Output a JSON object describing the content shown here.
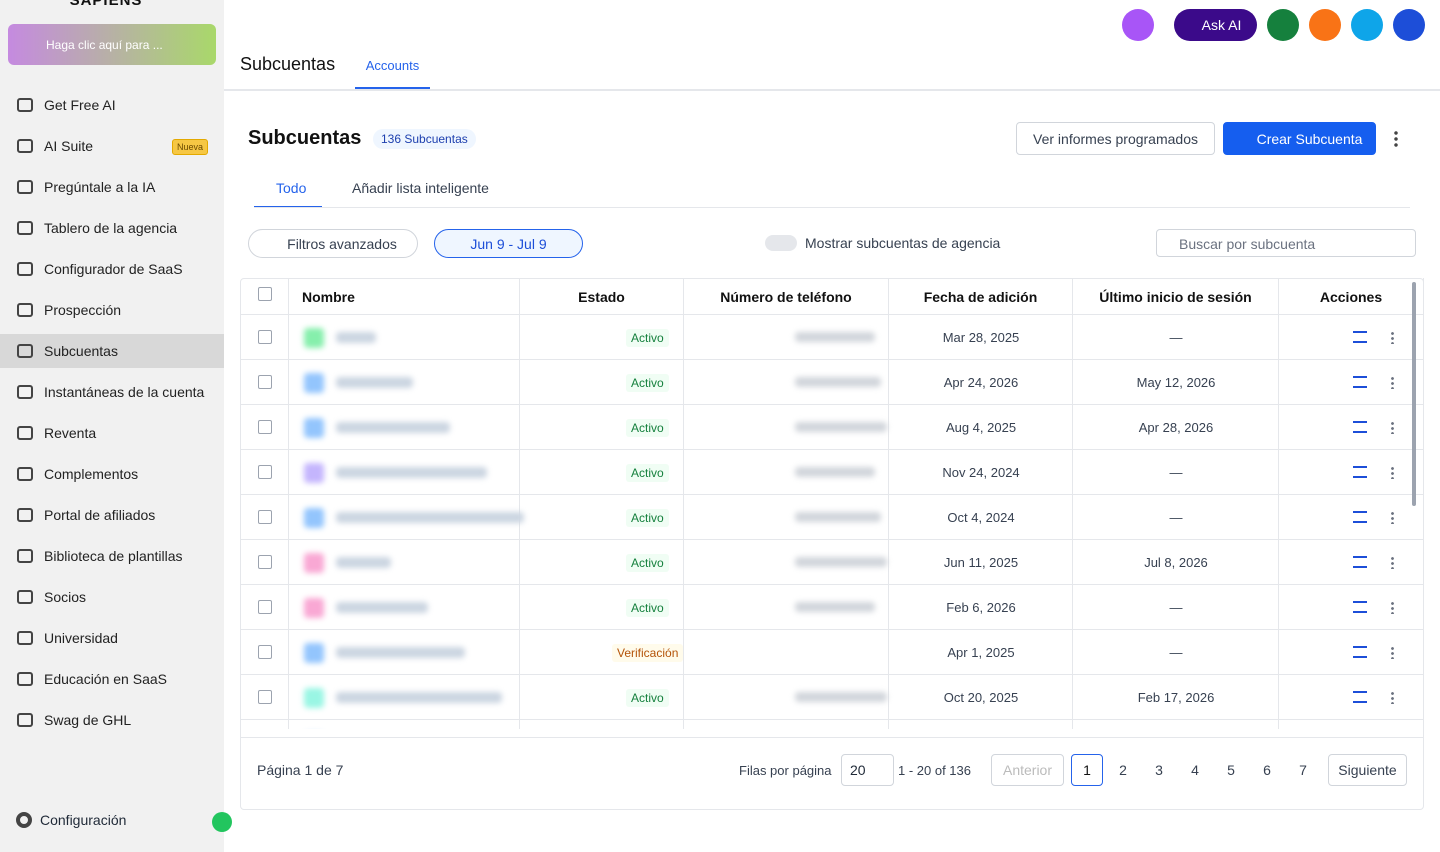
{
  "sidebar": {
    "logo": "SAPIENS",
    "switcher": "Haga clic aquí para ...",
    "nav": [
      {
        "label": "Get Free AI"
      },
      {
        "label": "AI Suite",
        "badge": "Nueva"
      },
      {
        "label": "Pregúntale a la IA"
      },
      {
        "label": "Tablero de la agencia"
      },
      {
        "label": "Configurador de SaaS"
      },
      {
        "label": "Prospección"
      },
      {
        "label": "Subcuentas",
        "active": true
      },
      {
        "label": "Instantáneas de la cuenta"
      },
      {
        "label": "Reventa"
      },
      {
        "label": "Complementos"
      },
      {
        "label": "Portal de afiliados"
      },
      {
        "label": "Biblioteca de plantillas"
      },
      {
        "label": "Socios"
      },
      {
        "label": "Universidad"
      },
      {
        "label": "Educación en SaaS"
      },
      {
        "label": "Swag de GHL"
      }
    ],
    "footer": "Configuración"
  },
  "topbar": {
    "ask_ai": "Ask AI",
    "tabs": [
      "Subcuentas",
      "Accounts"
    ]
  },
  "header": {
    "title": "Subcuentas",
    "count": "136 Subcuentas",
    "reports_button": "Ver informes programados",
    "create_button": "Crear Subcuenta"
  },
  "tabs": [
    "Todo",
    "Añadir lista inteligente"
  ],
  "filters": {
    "advanced": "Filtros avanzados",
    "date_range": "Jun 9 - Jul 9",
    "toggle": "Mostrar subcuentas de agencia",
    "search_placeholder": "Buscar por subcuenta"
  },
  "table": {
    "columns": [
      "Nombre",
      "Estado",
      "Número de teléfono",
      "Fecha de adición",
      "Último inicio de sesión",
      "Acciones"
    ],
    "rows": [
      {
        "status": "Activo",
        "added": "Mar 28, 2025",
        "last_login": "—",
        "avatar_color": "#86efac"
      },
      {
        "status": "Activo",
        "added": "Apr 24, 2026",
        "last_login": "May 12, 2026",
        "avatar_color": "#93c5fd"
      },
      {
        "status": "Activo",
        "added": "Aug 4, 2025",
        "last_login": "Apr 28, 2026",
        "avatar_color": "#93c5fd"
      },
      {
        "status": "Activo",
        "added": "Nov 24, 2024",
        "last_login": "—",
        "avatar_color": "#c4b5fd"
      },
      {
        "status": "Activo",
        "added": "Oct 4, 2024",
        "last_login": "—",
        "avatar_color": "#93c5fd"
      },
      {
        "status": "Activo",
        "added": "Jun 11, 2025",
        "last_login": "Jul 8, 2026",
        "avatar_color": "#f9a8d4"
      },
      {
        "status": "Activo",
        "added": "Feb 6, 2026",
        "last_login": "—",
        "avatar_color": "#f9a8d4"
      },
      {
        "status": "Verificación",
        "added": "Apr 1, 2025",
        "last_login": "—",
        "avatar_color": "#93c5fd"
      },
      {
        "status": "Activo",
        "added": "Oct 20, 2025",
        "last_login": "Feb 17, 2026",
        "avatar_color": "#99f6e4"
      }
    ]
  },
  "pagination": {
    "page_info": "Página 1 de 7",
    "rows_label": "Filas por página",
    "rows_per_page": "20",
    "range": "1 - 20 of 136",
    "prev": "Anterior",
    "pages": [
      "1",
      "2",
      "3",
      "4",
      "5",
      "6",
      "7"
    ],
    "next": "Siguiente"
  }
}
